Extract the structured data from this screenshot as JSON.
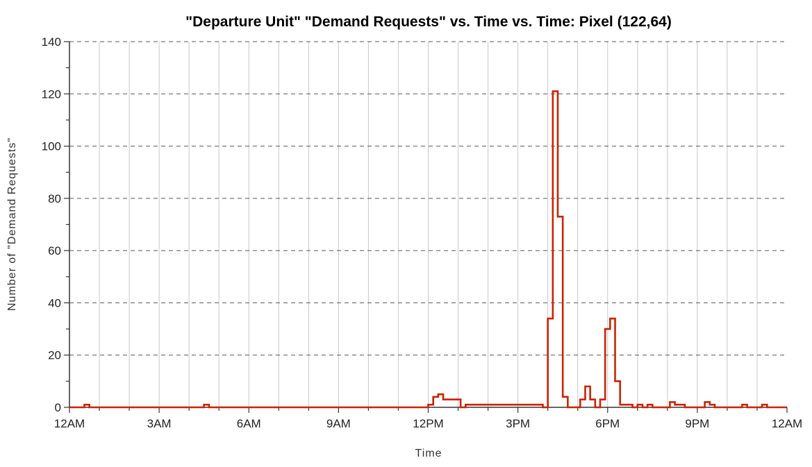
{
  "chart_data": {
    "type": "line",
    "title": "\"Departure Unit\" \"Demand Requests\" vs. Time vs. Time: Pixel (122,64)",
    "xlabel": "Time",
    "ylabel": "Number of \"Demand Requests\"",
    "xlim": [
      0,
      24
    ],
    "ylim": [
      0,
      140
    ],
    "x_ticks": [
      {
        "value": 0,
        "label": "12AM"
      },
      {
        "value": 3,
        "label": "3AM"
      },
      {
        "value": 6,
        "label": "6AM"
      },
      {
        "value": 9,
        "label": "9AM"
      },
      {
        "value": 12,
        "label": "12PM"
      },
      {
        "value": 15,
        "label": "3PM"
      },
      {
        "value": 18,
        "label": "6PM"
      },
      {
        "value": 21,
        "label": "9PM"
      },
      {
        "value": 24,
        "label": "12AM"
      }
    ],
    "y_ticks": [
      0,
      20,
      40,
      60,
      80,
      100,
      120,
      140
    ],
    "grid": {
      "vertical": "solid-light",
      "horizontal": "dashed"
    },
    "series": [
      {
        "style": "step",
        "color": "#cc2200",
        "x": [
          0,
          0.5,
          0.667,
          4.5,
          4.667,
          12,
          12.167,
          12.333,
          12.5,
          12.667,
          13.083,
          13.25,
          13.583,
          15.833,
          16,
          16.167,
          16.333,
          16.5,
          16.667,
          17.083,
          17.25,
          17.417,
          17.583,
          17.75,
          17.917,
          18.083,
          18.25,
          18.417,
          18.833,
          19.0,
          19.167,
          19.333,
          19.5,
          19.583,
          19.917,
          20.083,
          20.25,
          20.583,
          21.25,
          21.417,
          21.583,
          22.5,
          22.667,
          23.167,
          23.333,
          24
        ],
        "y": [
          0,
          1,
          0,
          1,
          0,
          1,
          4,
          5,
          3,
          3,
          0,
          1,
          1,
          0,
          34,
          121,
          73,
          4,
          0,
          3,
          8,
          3,
          0,
          3,
          30,
          34,
          10,
          1,
          0,
          1,
          0,
          1,
          0,
          0,
          0,
          2,
          1,
          0,
          2,
          1,
          0,
          1,
          0,
          1,
          0,
          0
        ]
      }
    ]
  }
}
